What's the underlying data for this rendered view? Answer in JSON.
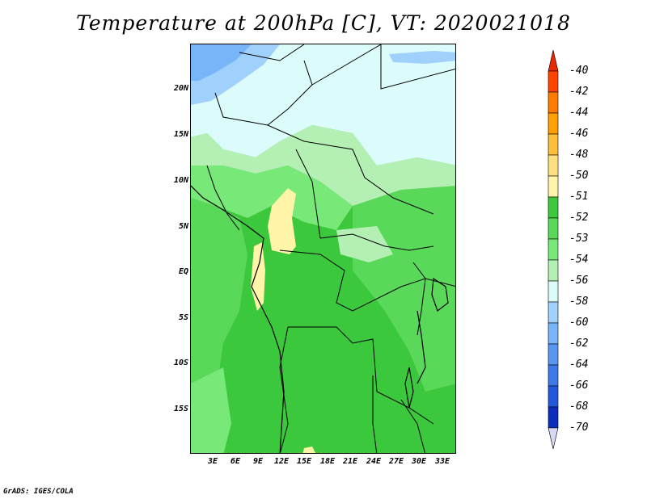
{
  "title": "Temperature at 200hPa [C], VT: 2020021018",
  "credit": "GrADS: IGES/COLA",
  "map": {
    "lat_labels": [
      "20N",
      "15N",
      "10N",
      "5N",
      "EQ",
      "5S",
      "10S",
      "15S"
    ],
    "lon_labels": [
      "3E",
      "6E",
      "9E",
      "12E",
      "15E",
      "18E",
      "21E",
      "24E",
      "27E",
      "30E",
      "33E"
    ]
  },
  "colorbar": {
    "labels": [
      "-40",
      "-42",
      "-44",
      "-46",
      "-48",
      "-50",
      "-51",
      "-52",
      "-53",
      "-54",
      "-56",
      "-58",
      "-60",
      "-62",
      "-64",
      "-66",
      "-68",
      "-70"
    ],
    "colors": [
      "#e82800",
      "#ff4400",
      "#ff7a00",
      "#ffa000",
      "#ffbe3a",
      "#ffe080",
      "#fff4a8",
      "#3ec83e",
      "#5ad85a",
      "#78e878",
      "#b4f0b4",
      "#dcfcfc",
      "#a0d0fc",
      "#78b4f8",
      "#5896f0",
      "#3c78e8",
      "#2458dc",
      "#0c2cbc",
      "#06106c",
      "#d8d8f4"
    ]
  }
}
